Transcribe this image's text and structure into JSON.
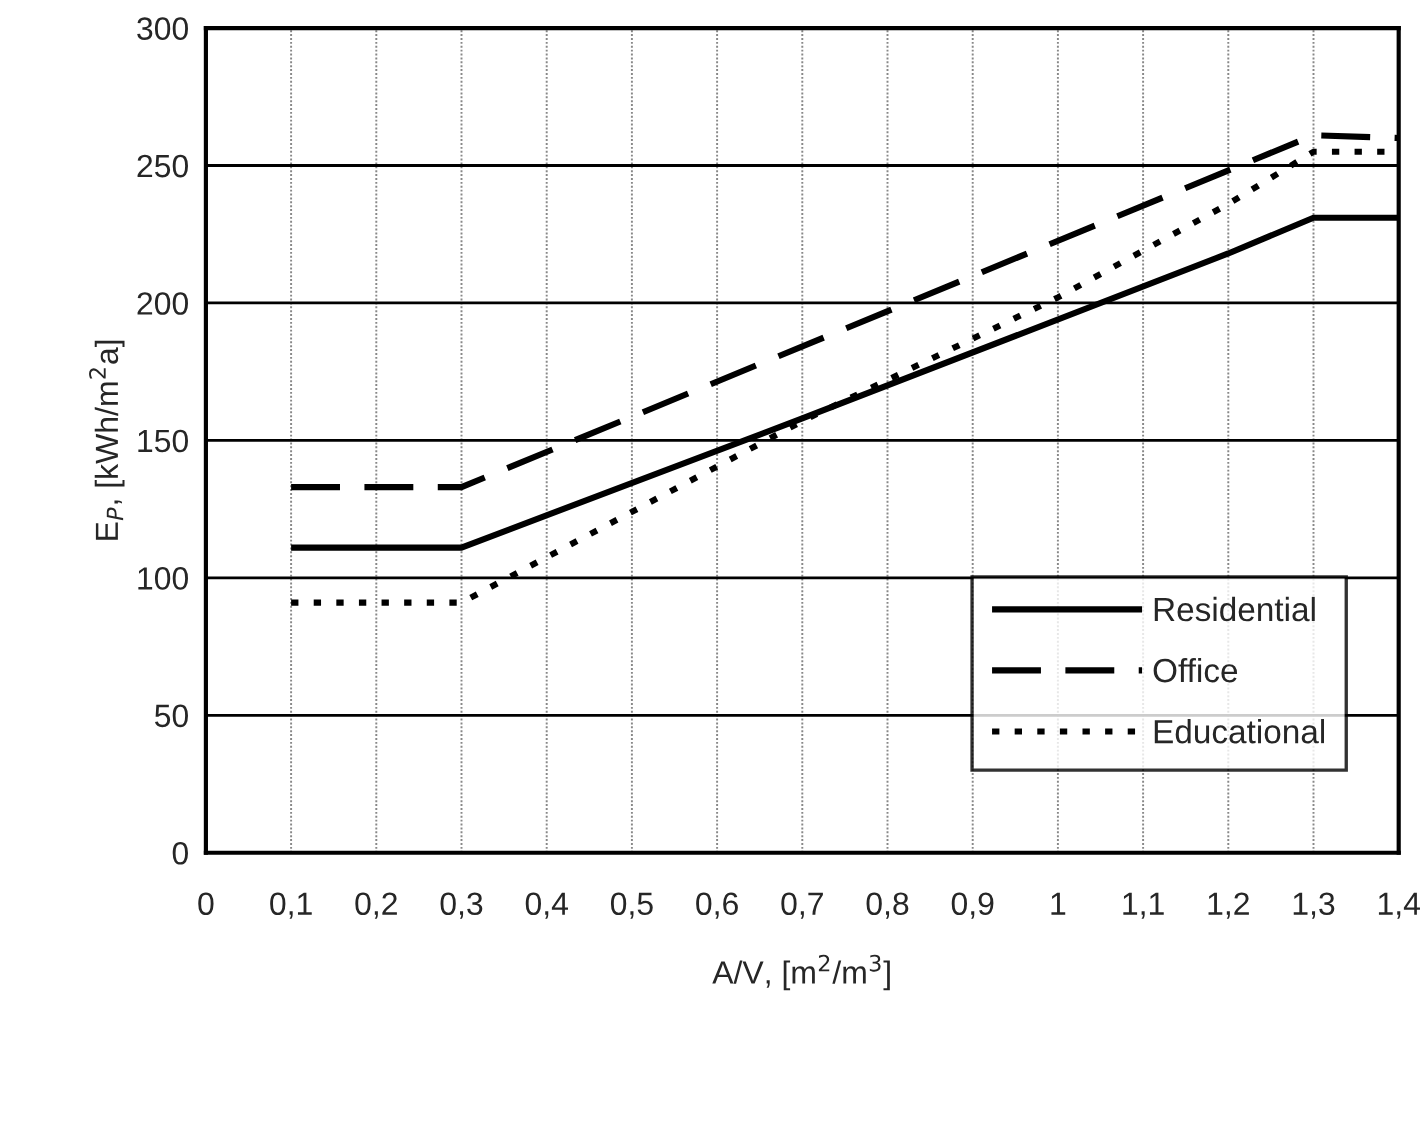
{
  "chart_data": {
    "type": "line",
    "xlabel": "A/V, [m$^{2}$/m$^{3}$]",
    "ylabel": "E$_{P}$, [kWh/m$^{2}$a]",
    "xlim": [
      0,
      1.4
    ],
    "xticks": [
      0,
      {
        "value": 0.1,
        "label": "0,1"
      },
      {
        "value": 0.2,
        "label": "0,2"
      },
      {
        "value": 0.3,
        "label": "0,3"
      },
      {
        "value": 0.4,
        "label": "0,4"
      },
      {
        "value": 0.5,
        "label": "0,5"
      },
      {
        "value": 0.6,
        "label": "0,6"
      },
      {
        "value": 0.7,
        "label": "0,7"
      },
      {
        "value": 0.8,
        "label": "0,8"
      },
      {
        "value": 0.9,
        "label": "0,9"
      },
      1,
      {
        "value": 1.1,
        "label": "1,1"
      },
      {
        "value": 1.2,
        "label": "1,2"
      },
      {
        "value": 1.3,
        "label": "1,3"
      },
      {
        "value": 1.4,
        "label": "1,4"
      }
    ],
    "ylim": [
      0,
      300
    ],
    "yticks": [
      0,
      50,
      100,
      150,
      200,
      250,
      300
    ],
    "grid": true,
    "legend": "bottom right",
    "marker": "none",
    "series": [
      {
        "name": "Residential",
        "color": "#000000",
        "line_style": "solid",
        "x": [
          0.1,
          0.3,
          0.7,
          1.2,
          1.3,
          1.4
        ],
        "values": [
          111,
          111,
          158,
          218,
          231,
          231
        ]
      },
      {
        "name": "Office",
        "color": "#000000",
        "line_style": "dashed",
        "x": [
          0.1,
          0.3,
          1.3,
          1.4
        ],
        "values": [
          133,
          133,
          261,
          260
        ]
      },
      {
        "name": "Educational",
        "color": "#000000",
        "line_style": "dotted",
        "x": [
          0.1,
          0.3,
          0.7,
          1.0,
          1.2,
          1.3,
          1.4
        ],
        "values": [
          91,
          91,
          157,
          202,
          236,
          255,
          255
        ]
      }
    ]
  }
}
